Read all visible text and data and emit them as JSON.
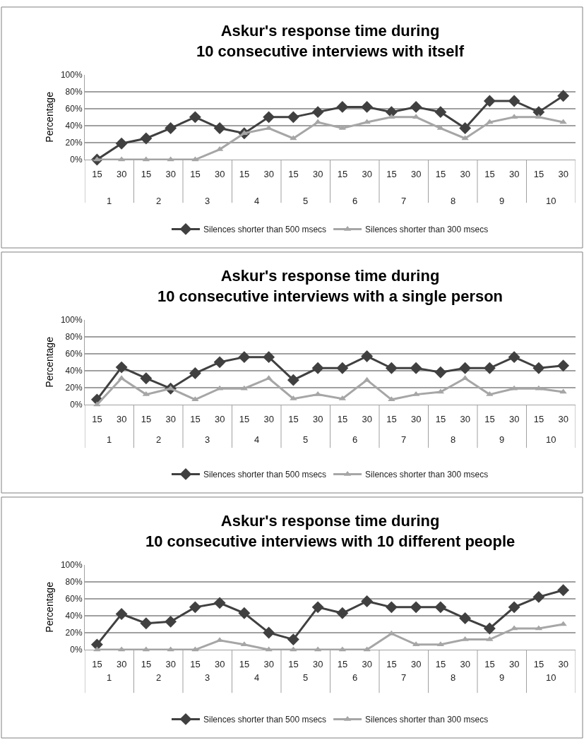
{
  "chart_data": [
    {
      "type": "line",
      "title": "Askur's response time during\n10 consecutive interviews with itself",
      "ylabel": "Percentage",
      "categories": [
        "15",
        "30",
        "15",
        "30",
        "15",
        "30",
        "15",
        "30",
        "15",
        "30",
        "15",
        "30",
        "15",
        "30",
        "15",
        "30",
        "15",
        "30",
        "15",
        "30"
      ],
      "annotations": [
        "1",
        "2",
        "3",
        "4",
        "5",
        "6",
        "7",
        "8",
        "9",
        "10"
      ],
      "ylim": [
        0,
        100
      ],
      "yticks": [
        {
          "value": 0,
          "label": "0%"
        },
        {
          "value": 20,
          "label": "20%"
        },
        {
          "value": 40,
          "label": "40%"
        },
        {
          "value": 60,
          "label": "60%"
        },
        {
          "value": 80,
          "label": "80%"
        },
        {
          "value": 100,
          "label": "100%"
        }
      ],
      "grid": "y",
      "legend": "bottom",
      "series": [
        {
          "name": "Silences shorter than 500 msecs",
          "color": "#404040",
          "marker": "diamond",
          "values": [
            0,
            19,
            25,
            37,
            50,
            37,
            31,
            50,
            50,
            56,
            62,
            62,
            56,
            62,
            56,
            37,
            69,
            69,
            56,
            75
          ]
        },
        {
          "name": "Silences shorter than 300 msecs",
          "color": "#a6a6a6",
          "marker": "triangle",
          "values": [
            0,
            0,
            0,
            0,
            0,
            12,
            31,
            37,
            25,
            44,
            37,
            44,
            50,
            50,
            37,
            25,
            44,
            50,
            50,
            44
          ]
        }
      ]
    },
    {
      "type": "line",
      "title": "Askur's response time during\n10 consecutive interviews with a single person",
      "ylabel": "Percentage",
      "categories": [
        "15",
        "30",
        "15",
        "30",
        "15",
        "30",
        "15",
        "30",
        "15",
        "30",
        "15",
        "30",
        "15",
        "30",
        "15",
        "30",
        "15",
        "30",
        "15",
        "30"
      ],
      "annotations": [
        "1",
        "2",
        "3",
        "4",
        "5",
        "6",
        "7",
        "8",
        "9",
        "10"
      ],
      "ylim": [
        0,
        100
      ],
      "yticks": [
        {
          "value": 0,
          "label": "0%"
        },
        {
          "value": 20,
          "label": "20%"
        },
        {
          "value": 40,
          "label": "40%"
        },
        {
          "value": 60,
          "label": "60%"
        },
        {
          "value": 80,
          "label": "80%"
        },
        {
          "value": 100,
          "label": "100%"
        }
      ],
      "grid": "y",
      "legend": "bottom",
      "series": [
        {
          "name": "Silences shorter than 500 msecs",
          "color": "#404040",
          "marker": "diamond",
          "values": [
            6,
            44,
            31,
            19,
            37,
            50,
            56,
            56,
            29,
            43,
            43,
            57,
            43,
            43,
            38,
            43,
            43,
            56,
            43,
            46
          ]
        },
        {
          "name": "Silences shorter than 300 msecs",
          "color": "#a6a6a6",
          "marker": "triangle",
          "values": [
            0,
            31,
            12,
            19,
            6,
            19,
            19,
            31,
            7,
            12,
            7,
            29,
            6,
            12,
            15,
            31,
            12,
            19,
            19,
            15
          ]
        }
      ]
    },
    {
      "type": "line",
      "title": "Askur's response time during\n10 consecutive interviews with 10 different people",
      "ylabel": "Percentage",
      "categories": [
        "15",
        "30",
        "15",
        "30",
        "15",
        "30",
        "15",
        "30",
        "15",
        "30",
        "15",
        "30",
        "15",
        "30",
        "15",
        "30",
        "15",
        "30",
        "15",
        "30"
      ],
      "annotations": [
        "1",
        "2",
        "3",
        "4",
        "5",
        "6",
        "7",
        "8",
        "9",
        "10"
      ],
      "ylim": [
        0,
        100
      ],
      "yticks": [
        {
          "value": 0,
          "label": "0%"
        },
        {
          "value": 20,
          "label": "20%"
        },
        {
          "value": 40,
          "label": "40%"
        },
        {
          "value": 60,
          "label": "60%"
        },
        {
          "value": 80,
          "label": "80%"
        },
        {
          "value": 100,
          "label": "100%"
        }
      ],
      "grid": "y",
      "legend": "bottom",
      "series": [
        {
          "name": "Silences shorter than 500 msecs",
          "color": "#404040",
          "marker": "diamond",
          "values": [
            6,
            42,
            31,
            33,
            50,
            55,
            43,
            20,
            12,
            50,
            43,
            57,
            50,
            50,
            50,
            37,
            25,
            50,
            62,
            70
          ]
        },
        {
          "name": "Silences shorter than 300 msecs",
          "color": "#a6a6a6",
          "marker": "triangle",
          "values": [
            0,
            0,
            0,
            0,
            0,
            11,
            6,
            0,
            0,
            0,
            0,
            0,
            19,
            6,
            6,
            12,
            12,
            25,
            25,
            30
          ]
        }
      ]
    }
  ]
}
